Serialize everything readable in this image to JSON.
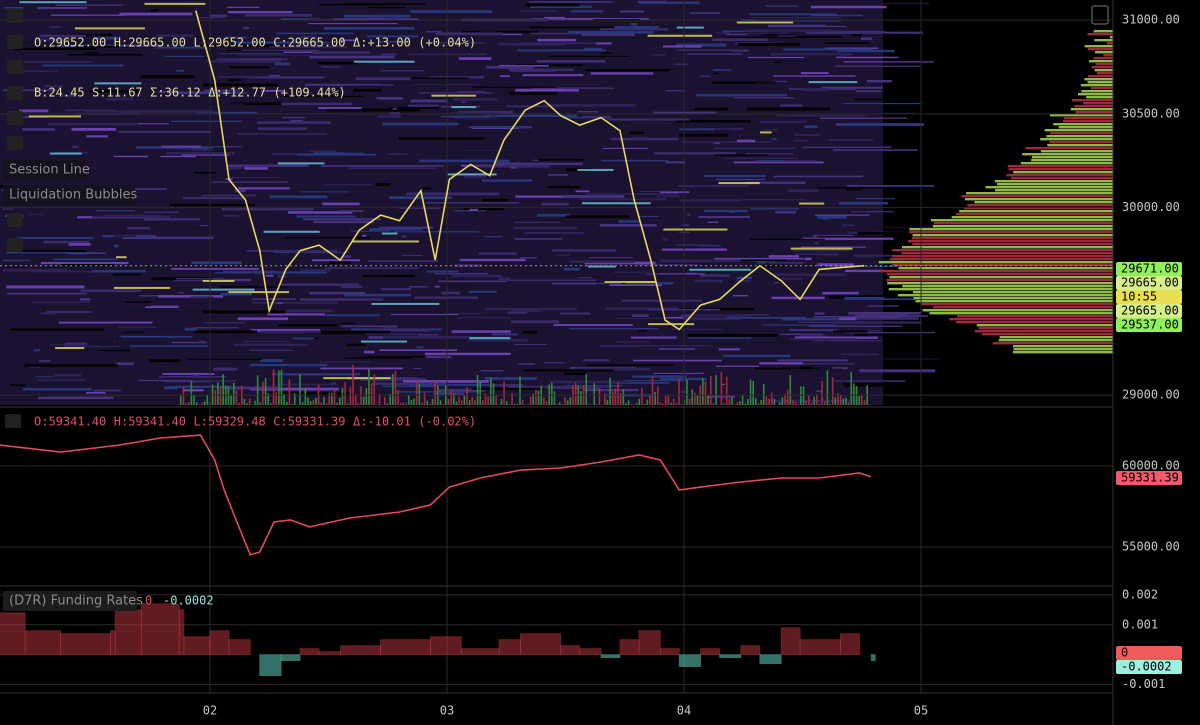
{
  "toolbar": {
    "items": [
      "Session Line",
      "Liquidation Bubbles"
    ]
  },
  "legend": {
    "ohlc": [
      "O:29652.00",
      "H:29665.00",
      "L:29652.00",
      "C:29665.00",
      "Δ:+13.00",
      "(+0.04%)"
    ],
    "flow": [
      "B:24.45",
      "S:11.67",
      "Σ:36.12",
      "Δ:+12.77",
      "(+109.44%)"
    ],
    "index": [
      "O:59341.40",
      "H:59341.40",
      "L:59329.48",
      "C:59331.39",
      "Δ:-10.01",
      "(-0.02%)"
    ],
    "funding": {
      "name": "(D7R) Funding Rates",
      "values": [
        "0",
        "-0.0002"
      ]
    }
  },
  "price_tags": [
    "29671.00",
    "29665.00",
    "10:55",
    "29665.00",
    "29537.00"
  ],
  "index_tag": "59331.39",
  "funding_tags": [
    "0",
    "-0.0002"
  ],
  "chart_data": [
    {
      "type": "line",
      "color": "#e8d860",
      "x": [
        1.94,
        2.02,
        2.08,
        2.15,
        2.21,
        2.25,
        2.32,
        2.38,
        2.46,
        2.55,
        2.63,
        2.72,
        2.8,
        2.89,
        2.95,
        3.01,
        3.1,
        3.18,
        3.24,
        3.33,
        3.41,
        3.48,
        3.56,
        3.65,
        3.73,
        3.79,
        3.86,
        3.92,
        3.98,
        4.07,
        4.15,
        4.24,
        4.32,
        4.41,
        4.49,
        4.57,
        4.66,
        4.76
      ],
      "values": [
        31050,
        30680,
        30150,
        30040,
        29770,
        29450,
        29670,
        29770,
        29800,
        29720,
        29880,
        29960,
        29930,
        30090,
        29720,
        30150,
        30230,
        30170,
        30360,
        30520,
        30570,
        30490,
        30440,
        30480,
        30410,
        30040,
        29720,
        29400,
        29350,
        29480,
        29510,
        29610,
        29690,
        29610,
        29510,
        29670,
        29680,
        29690
      ],
      "xlim": [
        1.114,
        5.81
      ],
      "ylim": [
        28947,
        31107
      ],
      "yticks": [
        {
          "value": 31000,
          "label": "31000.00"
        },
        {
          "value": 30500,
          "label": "30500.00"
        },
        {
          "value": 30000,
          "label": "30000.00"
        },
        {
          "value": 29000,
          "label": "29000.00"
        }
      ]
    },
    {
      "type": "line",
      "color": "#e04a5e",
      "x": [
        1.11,
        1.37,
        1.62,
        1.79,
        1.96,
        2.02,
        2.06,
        2.11,
        2.17,
        2.21,
        2.27,
        2.34,
        2.42,
        2.59,
        2.8,
        2.93,
        3.01,
        3.14,
        3.31,
        3.48,
        3.65,
        3.81,
        3.9,
        3.98,
        4.07,
        4.24,
        4.41,
        4.57,
        4.74,
        4.79
      ],
      "values": [
        61300,
        60860,
        61300,
        61730,
        61910,
        60370,
        58520,
        56670,
        54510,
        54690,
        56540,
        56670,
        56240,
        56790,
        57160,
        57590,
        58700,
        59260,
        59750,
        59880,
        60250,
        60680,
        60370,
        58520,
        58700,
        59010,
        59260,
        59260,
        59570,
        59330
      ],
      "xlim": [
        1.114,
        5.81
      ],
      "ylim": [
        52650,
        63460
      ],
      "yticks": [
        {
          "value": 60000,
          "label": "60000.00"
        },
        {
          "value": 55000,
          "label": "55000.00"
        }
      ]
    },
    {
      "type": "step",
      "positive_color": "#b0343c",
      "negative_color": "#5fd0c0",
      "x": [
        1.11,
        1.22,
        1.37,
        1.58,
        1.6,
        1.71,
        1.87,
        1.89,
        2.0,
        2.08,
        2.17,
        2.21,
        2.3,
        2.38,
        2.46,
        2.55,
        2.72,
        2.93,
        3.06,
        3.22,
        3.31,
        3.48,
        3.56,
        3.65,
        3.73,
        3.81,
        3.9,
        3.98,
        4.07,
        4.15,
        4.24,
        4.32,
        4.41,
        4.49,
        4.66,
        4.74,
        4.79
      ],
      "values": [
        0.0014,
        0.0008,
        0.0007,
        0.0008,
        0.0015,
        0.0017,
        0.0015,
        0.0006,
        0.0008,
        0.0005,
        0,
        -0.0007,
        -0.0002,
        0.0002,
        0.0001,
        0.0003,
        0.0005,
        0.0006,
        0.0002,
        0.0005,
        0.0007,
        0.0003,
        0.0002,
        -0.0001,
        0.0005,
        0.0008,
        0.0002,
        -0.0004,
        0.0002,
        -0.0001,
        0.0003,
        -0.0003,
        0.0009,
        0.0005,
        0.0007,
        0,
        -0.0002
      ],
      "xlim": [
        1.114,
        5.81
      ],
      "ylim": [
        -0.00125,
        0.00223
      ],
      "yticks": [
        0.002,
        0.001,
        -0.001
      ],
      "xticks": [
        {
          "value": 2,
          "label": "02"
        },
        {
          "value": 3,
          "label": "03"
        },
        {
          "value": 4,
          "label": "04"
        },
        {
          "value": 5,
          "label": "05"
        }
      ]
    }
  ]
}
